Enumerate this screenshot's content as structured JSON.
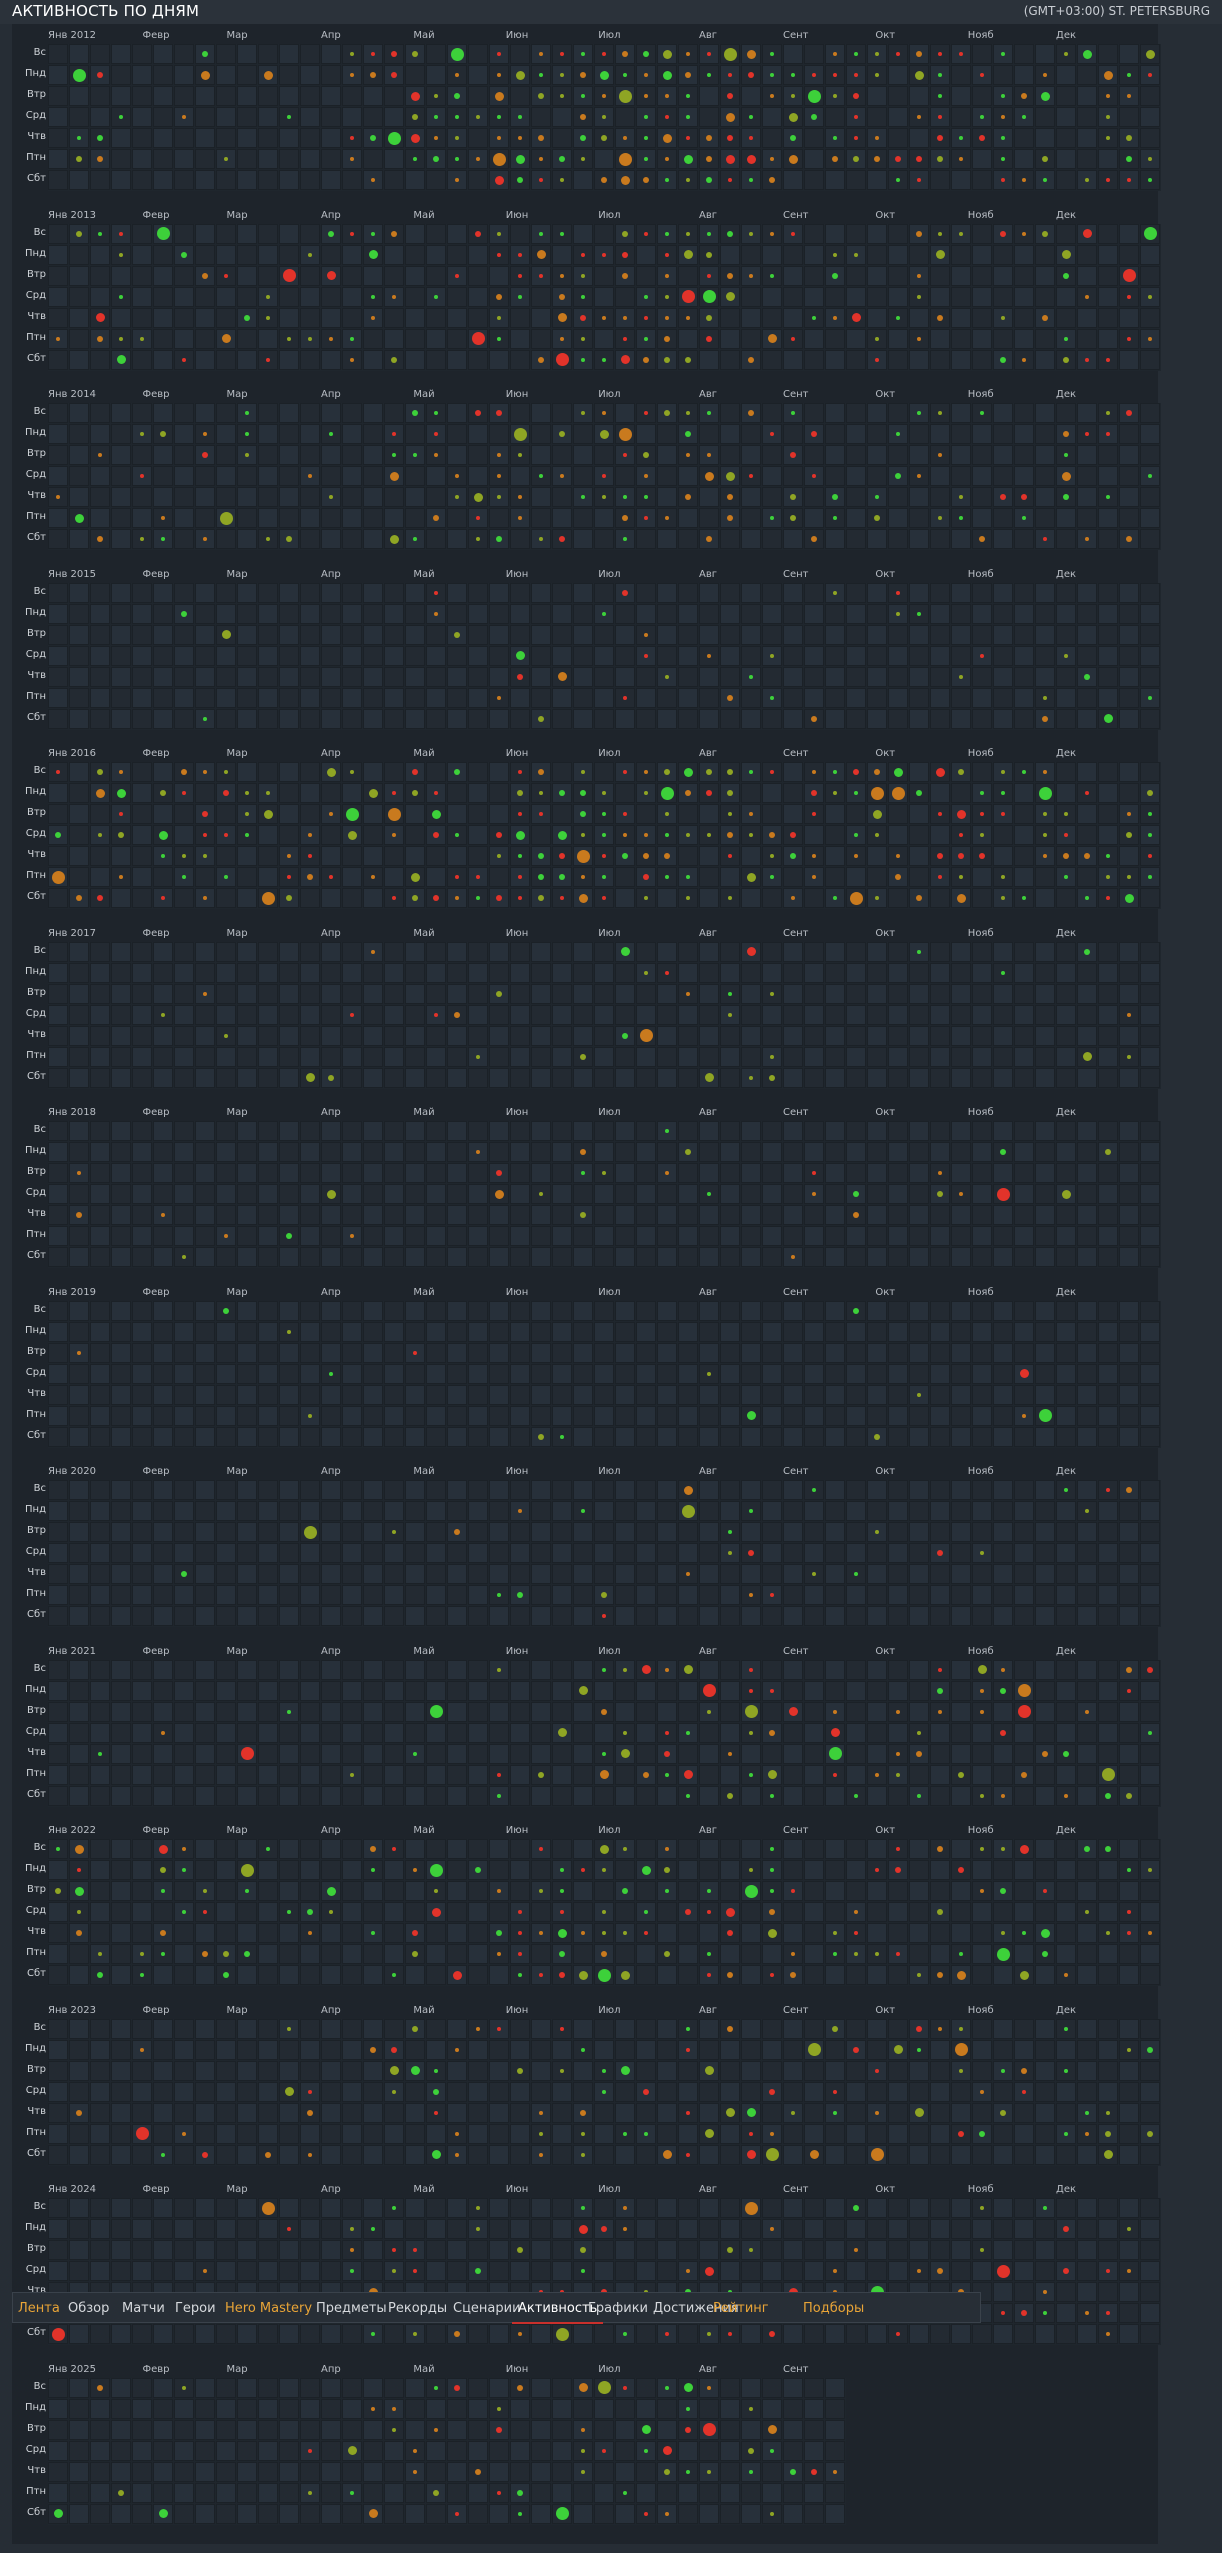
{
  "page": {
    "title": "АКТИВНОСТЬ ПО ДНЯМ",
    "timezone": "(GMT+03:00) ST. PETERSBURG"
  },
  "days": [
    "Вс",
    "Пнд",
    "Втр",
    "Срд",
    "Чтв",
    "Птн",
    "Сбт"
  ],
  "months": [
    "Янв",
    "Февр",
    "Мар",
    "Апр",
    "Май",
    "Июн",
    "Июл",
    "Авг",
    "Сент",
    "Окт",
    "Нояб",
    "Дек"
  ],
  "years": [
    {
      "label": "Янв 2012",
      "weeks": 53
    },
    {
      "label": "Янв 2013",
      "weeks": 53
    },
    {
      "label": "Янв 2014",
      "weeks": 53
    },
    {
      "label": "Янв 2015",
      "weeks": 53
    },
    {
      "label": "Янв 2016",
      "weeks": 53
    },
    {
      "label": "Янв 2017",
      "weeks": 53
    },
    {
      "label": "Янв 2018",
      "weeks": 53
    },
    {
      "label": "Янв 2019",
      "weeks": 53
    },
    {
      "label": "Янв 2020",
      "weeks": 53
    },
    {
      "label": "Янв 2021",
      "weeks": 53
    },
    {
      "label": "Янв 2022",
      "weeks": 53
    },
    {
      "label": "Янв 2023",
      "weeks": 53
    },
    {
      "label": "Янв 2024",
      "weeks": 53
    },
    {
      "label": "Янв 2025",
      "weeks": 38
    }
  ],
  "legend_colors": {
    "win": "#3dd13a",
    "loss": "#e2332a",
    "mixed": "#c97a1e",
    "even": "#8fa524"
  },
  "nav": {
    "tabs": [
      {
        "label": "Лента",
        "style": "orange"
      },
      {
        "label": "Обзор",
        "style": "normal"
      },
      {
        "label": "Матчи",
        "style": "normal"
      },
      {
        "label": "Герои",
        "style": "normal"
      },
      {
        "label": "Hero Mastery",
        "style": "orange"
      },
      {
        "label": "Предметы",
        "style": "normal"
      },
      {
        "label": "Рекорды",
        "style": "normal"
      },
      {
        "label": "Сценарии",
        "style": "normal"
      },
      {
        "label": "Активность",
        "style": "active"
      },
      {
        "label": "Графики",
        "style": "normal"
      },
      {
        "label": "Достижения",
        "style": "normal"
      },
      {
        "label": "Рейтинг",
        "style": "orange"
      },
      {
        "label": "Подборы",
        "style": "orange"
      }
    ]
  }
}
